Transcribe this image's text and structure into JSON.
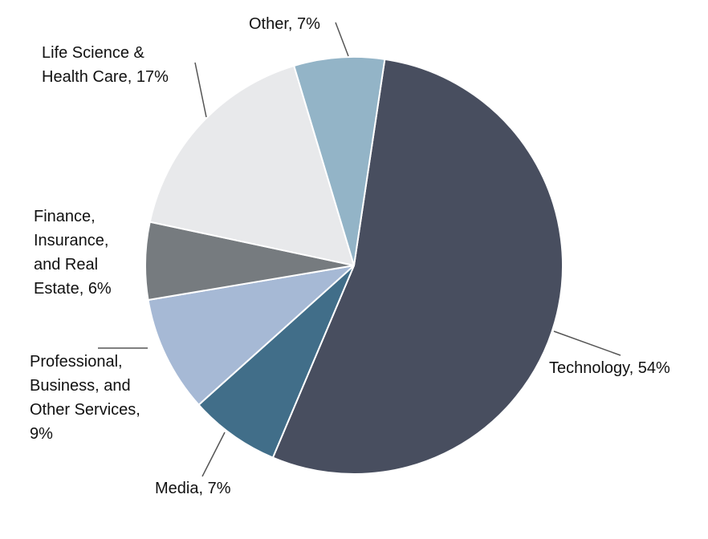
{
  "chart_data": {
    "type": "pie",
    "title": "",
    "slices": [
      {
        "name": "Technology",
        "value": 54,
        "label_lines": [
          "Technology, 54%"
        ],
        "color": "#484E5F"
      },
      {
        "name": "Media",
        "value": 7,
        "label_lines": [
          "Media, 7%"
        ],
        "color": "#416E89"
      },
      {
        "name": "Professional, Business, and Other Services",
        "value": 9,
        "label_lines": [
          "Professional,",
          "Business, and",
          "Other Services,",
          "9%"
        ],
        "color": "#A6B9D5"
      },
      {
        "name": "Finance, Insurance, and Real Estate",
        "value": 6,
        "label_lines": [
          "Finance,",
          "Insurance,",
          "and Real",
          "Estate, 6%"
        ],
        "color": "#767B7F"
      },
      {
        "name": "Life Science & Health Care",
        "value": 17,
        "label_lines": [
          "Life Science &",
          "Health Care, 17%"
        ],
        "color": "#E8E9EB"
      },
      {
        "name": "Other",
        "value": 7,
        "label_lines": [
          "Other, 7%"
        ],
        "color": "#93B4C7"
      }
    ],
    "start_direction": "top",
    "direction": "clockwise",
    "legend": "none"
  }
}
